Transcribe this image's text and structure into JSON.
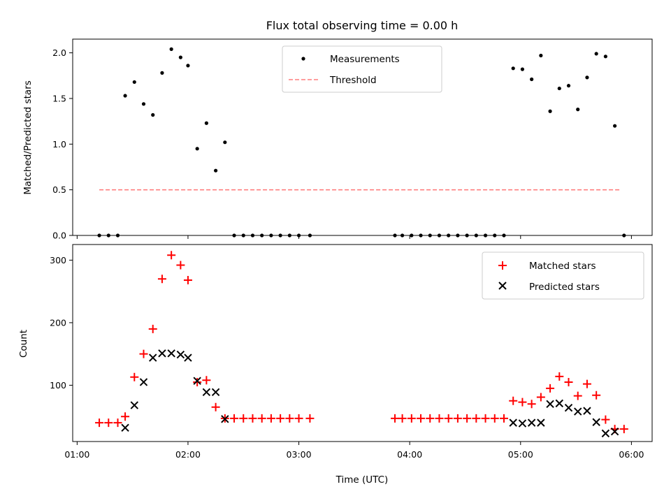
{
  "chart_data": [
    {
      "type": "scatter",
      "title": "Flux total observing time = 0.00 h",
      "xlabel": "",
      "ylabel": "Matched/Predicted stars",
      "xlim": [
        "00:57:36",
        "06:11:12"
      ],
      "ylim": [
        0,
        2.15
      ],
      "xticks": [
        "01:00",
        "02:00",
        "03:00",
        "04:00",
        "05:00",
        "06:00"
      ],
      "yticks": [
        "0.0",
        "0.5",
        "1.0",
        "1.5",
        "2.0"
      ],
      "legend": {
        "position": "top-center",
        "entries": [
          "Measurements",
          "Threshold"
        ]
      },
      "threshold": {
        "name": "Threshold",
        "value": 0.5,
        "x_start": "01:12:00",
        "x_end": "05:54:00",
        "color": "#ff7f7f",
        "style": "dashed"
      },
      "series": [
        {
          "name": "Measurements",
          "color": "#000000",
          "marker": "dot",
          "points": [
            [
              "01:12",
              0.0
            ],
            [
              "01:17",
              0.0
            ],
            [
              "01:22",
              0.0
            ],
            [
              "01:26",
              1.53
            ],
            [
              "01:31",
              1.68
            ],
            [
              "01:36",
              1.44
            ],
            [
              "01:41",
              1.32
            ],
            [
              "01:46",
              1.78
            ],
            [
              "01:51",
              2.04
            ],
            [
              "01:56",
              1.95
            ],
            [
              "02:00",
              1.86
            ],
            [
              "02:05",
              0.95
            ],
            [
              "02:10",
              1.23
            ],
            [
              "02:15",
              0.71
            ],
            [
              "02:20",
              1.02
            ],
            [
              "02:25",
              0.0
            ],
            [
              "02:30",
              0.0
            ],
            [
              "02:35",
              0.0
            ],
            [
              "02:40",
              0.0
            ],
            [
              "02:45",
              0.0
            ],
            [
              "02:50",
              0.0
            ],
            [
              "02:55",
              0.0
            ],
            [
              "03:00",
              0.0
            ],
            [
              "03:06",
              0.0
            ],
            [
              "03:52",
              0.0
            ],
            [
              "03:56",
              0.0
            ],
            [
              "04:01",
              0.0
            ],
            [
              "04:06",
              0.0
            ],
            [
              "04:11",
              0.0
            ],
            [
              "04:16",
              0.0
            ],
            [
              "04:21",
              0.0
            ],
            [
              "04:26",
              0.0
            ],
            [
              "04:31",
              0.0
            ],
            [
              "04:36",
              0.0
            ],
            [
              "04:41",
              0.0
            ],
            [
              "04:46",
              0.0
            ],
            [
              "04:51",
              0.0
            ],
            [
              "04:56",
              1.83
            ],
            [
              "05:01",
              1.82
            ],
            [
              "05:06",
              1.71
            ],
            [
              "05:11",
              1.97
            ],
            [
              "05:16",
              1.36
            ],
            [
              "05:21",
              1.61
            ],
            [
              "05:26",
              1.64
            ],
            [
              "05:31",
              1.38
            ],
            [
              "05:36",
              1.73
            ],
            [
              "05:41",
              1.99
            ],
            [
              "05:46",
              1.96
            ],
            [
              "05:51",
              1.2
            ],
            [
              "05:56",
              0.0
            ]
          ]
        }
      ]
    },
    {
      "type": "scatter",
      "title": "",
      "xlabel": "Time (UTC)",
      "ylabel": "Count",
      "xlim": [
        "00:57:36",
        "06:11:12"
      ],
      "ylim": [
        10,
        325
      ],
      "xticks": [
        "01:00",
        "02:00",
        "03:00",
        "04:00",
        "05:00",
        "06:00"
      ],
      "yticks": [
        "100",
        "200",
        "300"
      ],
      "legend": {
        "position": "top-right",
        "entries": [
          "Matched stars",
          "Predicted stars"
        ]
      },
      "series": [
        {
          "name": "Matched stars",
          "color": "#ff0000",
          "marker": "plus",
          "points": [
            [
              "01:12",
              40
            ],
            [
              "01:17",
              40
            ],
            [
              "01:22",
              40
            ],
            [
              "01:26",
              50
            ],
            [
              "01:31",
              113
            ],
            [
              "01:36",
              150
            ],
            [
              "01:41",
              190
            ],
            [
              "01:46",
              270
            ],
            [
              "01:51",
              308
            ],
            [
              "01:56",
              292
            ],
            [
              "02:00",
              268
            ],
            [
              "02:05",
              105
            ],
            [
              "02:10",
              108
            ],
            [
              "02:15",
              65
            ],
            [
              "02:20",
              47
            ],
            [
              "02:25",
              47
            ],
            [
              "02:30",
              47
            ],
            [
              "02:35",
              47
            ],
            [
              "02:40",
              47
            ],
            [
              "02:45",
              47
            ],
            [
              "02:50",
              47
            ],
            [
              "02:55",
              47
            ],
            [
              "03:00",
              47
            ],
            [
              "03:06",
              47
            ],
            [
              "03:52",
              47
            ],
            [
              "03:56",
              47
            ],
            [
              "04:01",
              47
            ],
            [
              "04:06",
              47
            ],
            [
              "04:11",
              47
            ],
            [
              "04:16",
              47
            ],
            [
              "04:21",
              47
            ],
            [
              "04:26",
              47
            ],
            [
              "04:31",
              47
            ],
            [
              "04:36",
              47
            ],
            [
              "04:41",
              47
            ],
            [
              "04:46",
              47
            ],
            [
              "04:51",
              47
            ],
            [
              "04:56",
              75
            ],
            [
              "05:01",
              73
            ],
            [
              "05:06",
              70
            ],
            [
              "05:11",
              81
            ],
            [
              "05:16",
              95
            ],
            [
              "05:21",
              114
            ],
            [
              "05:26",
              105
            ],
            [
              "05:31",
              83
            ],
            [
              "05:36",
              102
            ],
            [
              "05:41",
              84
            ],
            [
              "05:46",
              45
            ],
            [
              "05:51",
              30
            ],
            [
              "05:56",
              30
            ]
          ]
        },
        {
          "name": "Predicted stars",
          "color": "#000000",
          "marker": "x",
          "points": [
            [
              "01:26",
              32
            ],
            [
              "01:31",
              68
            ],
            [
              "01:36",
              105
            ],
            [
              "01:41",
              144
            ],
            [
              "01:46",
              151
            ],
            [
              "01:51",
              151
            ],
            [
              "01:56",
              149
            ],
            [
              "02:00",
              144
            ],
            [
              "02:05",
              107
            ],
            [
              "02:10",
              89
            ],
            [
              "02:15",
              89
            ],
            [
              "02:20",
              46
            ],
            [
              "04:56",
              40
            ],
            [
              "05:01",
              39
            ],
            [
              "05:06",
              40
            ],
            [
              "05:11",
              40
            ],
            [
              "05:16",
              70
            ],
            [
              "05:21",
              71
            ],
            [
              "05:26",
              64
            ],
            [
              "05:31",
              58
            ],
            [
              "05:36",
              59
            ],
            [
              "05:41",
              41
            ],
            [
              "05:46",
              23
            ],
            [
              "05:51",
              26
            ]
          ]
        }
      ]
    }
  ]
}
